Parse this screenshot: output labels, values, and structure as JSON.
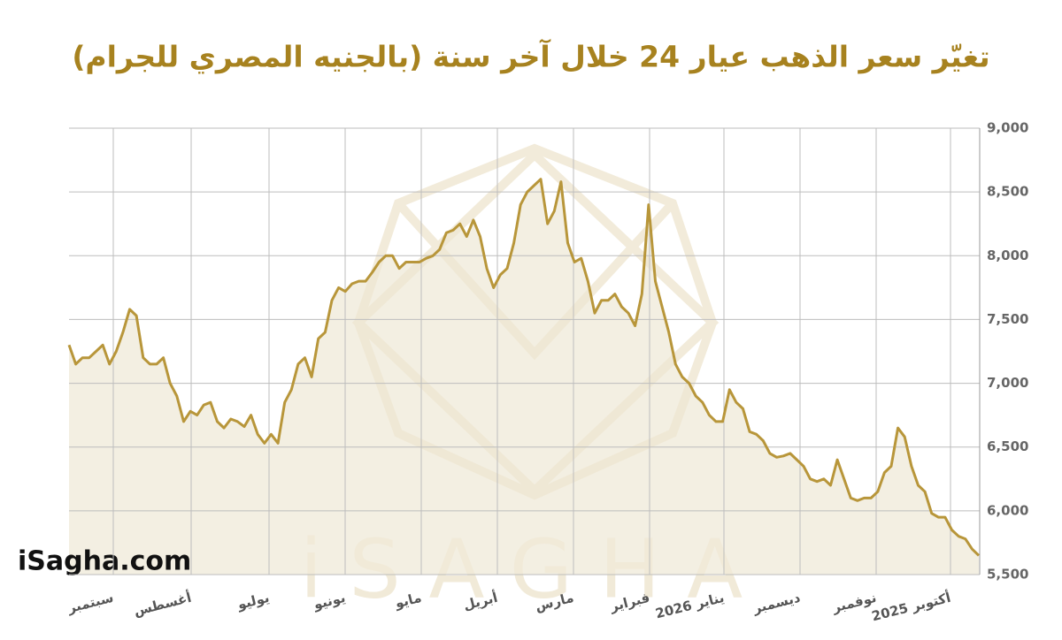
{
  "chart_data": {
    "type": "line",
    "title": "تغيّر سعر الذهب عيار 24 خلال آخر سنة (بالجنيه المصري للجرام)",
    "brand": "iSagha.com",
    "watermark": "iSAGHA",
    "x_labels": [
      "سبتمبر",
      "أغسطس",
      "يوليو",
      "يونيو",
      "مايو",
      "أبريل",
      "مارس",
      "فبراير",
      "يناير 2026",
      "ديسمبر",
      "نوفمبر",
      "أكتوبر 2025"
    ],
    "ylim": [
      5500,
      9000
    ],
    "yticks": [
      {
        "value": 5500,
        "label": "5,500"
      },
      {
        "value": 6000,
        "label": "6,000"
      },
      {
        "value": 6500,
        "label": "6,500"
      },
      {
        "value": 7000,
        "label": "7,000"
      },
      {
        "value": 7500,
        "label": "7,500"
      },
      {
        "value": 8000,
        "label": "8,000"
      },
      {
        "value": 8500,
        "label": "8,500"
      },
      {
        "value": 9000,
        "label": "9,000"
      }
    ],
    "grid": true,
    "color": "#b8963a",
    "fill": "#f3efe2",
    "values": [
      7300,
      7150,
      7200,
      7200,
      7250,
      7300,
      7150,
      7250,
      7400,
      7580,
      7530,
      7200,
      7150,
      7150,
      7200,
      7000,
      6900,
      6700,
      6780,
      6750,
      6830,
      6850,
      6700,
      6650,
      6720,
      6700,
      6660,
      6750,
      6600,
      6530,
      6600,
      6530,
      6850,
      6950,
      7150,
      7200,
      7050,
      7350,
      7400,
      7650,
      7750,
      7720,
      7780,
      7800,
      7800,
      7870,
      7950,
      8000,
      8000,
      7900,
      7950,
      7950,
      7950,
      7980,
      8000,
      8050,
      8180,
      8200,
      8250,
      8150,
      8280,
      8150,
      7900,
      7750,
      7850,
      7900,
      8100,
      8400,
      8500,
      8550,
      8600,
      8250,
      8350,
      8580,
      8100,
      7950,
      7980,
      7800,
      7550,
      7650,
      7650,
      7700,
      7600,
      7550,
      7450,
      7700,
      8400,
      7800,
      7600,
      7400,
      7150,
      7050,
      7000,
      6900,
      6850,
      6750,
      6700,
      6700,
      6950,
      6850,
      6800,
      6620,
      6600,
      6550,
      6450,
      6420,
      6430,
      6450,
      6400,
      6350,
      6250,
      6230,
      6250,
      6200,
      6400,
      6250,
      6100,
      6080,
      6100,
      6100,
      6150,
      6300,
      6350,
      6650,
      6580,
      6350,
      6200,
      6150,
      5980,
      5950,
      5950,
      5850,
      5800,
      5780,
      5700,
      5650
    ]
  }
}
